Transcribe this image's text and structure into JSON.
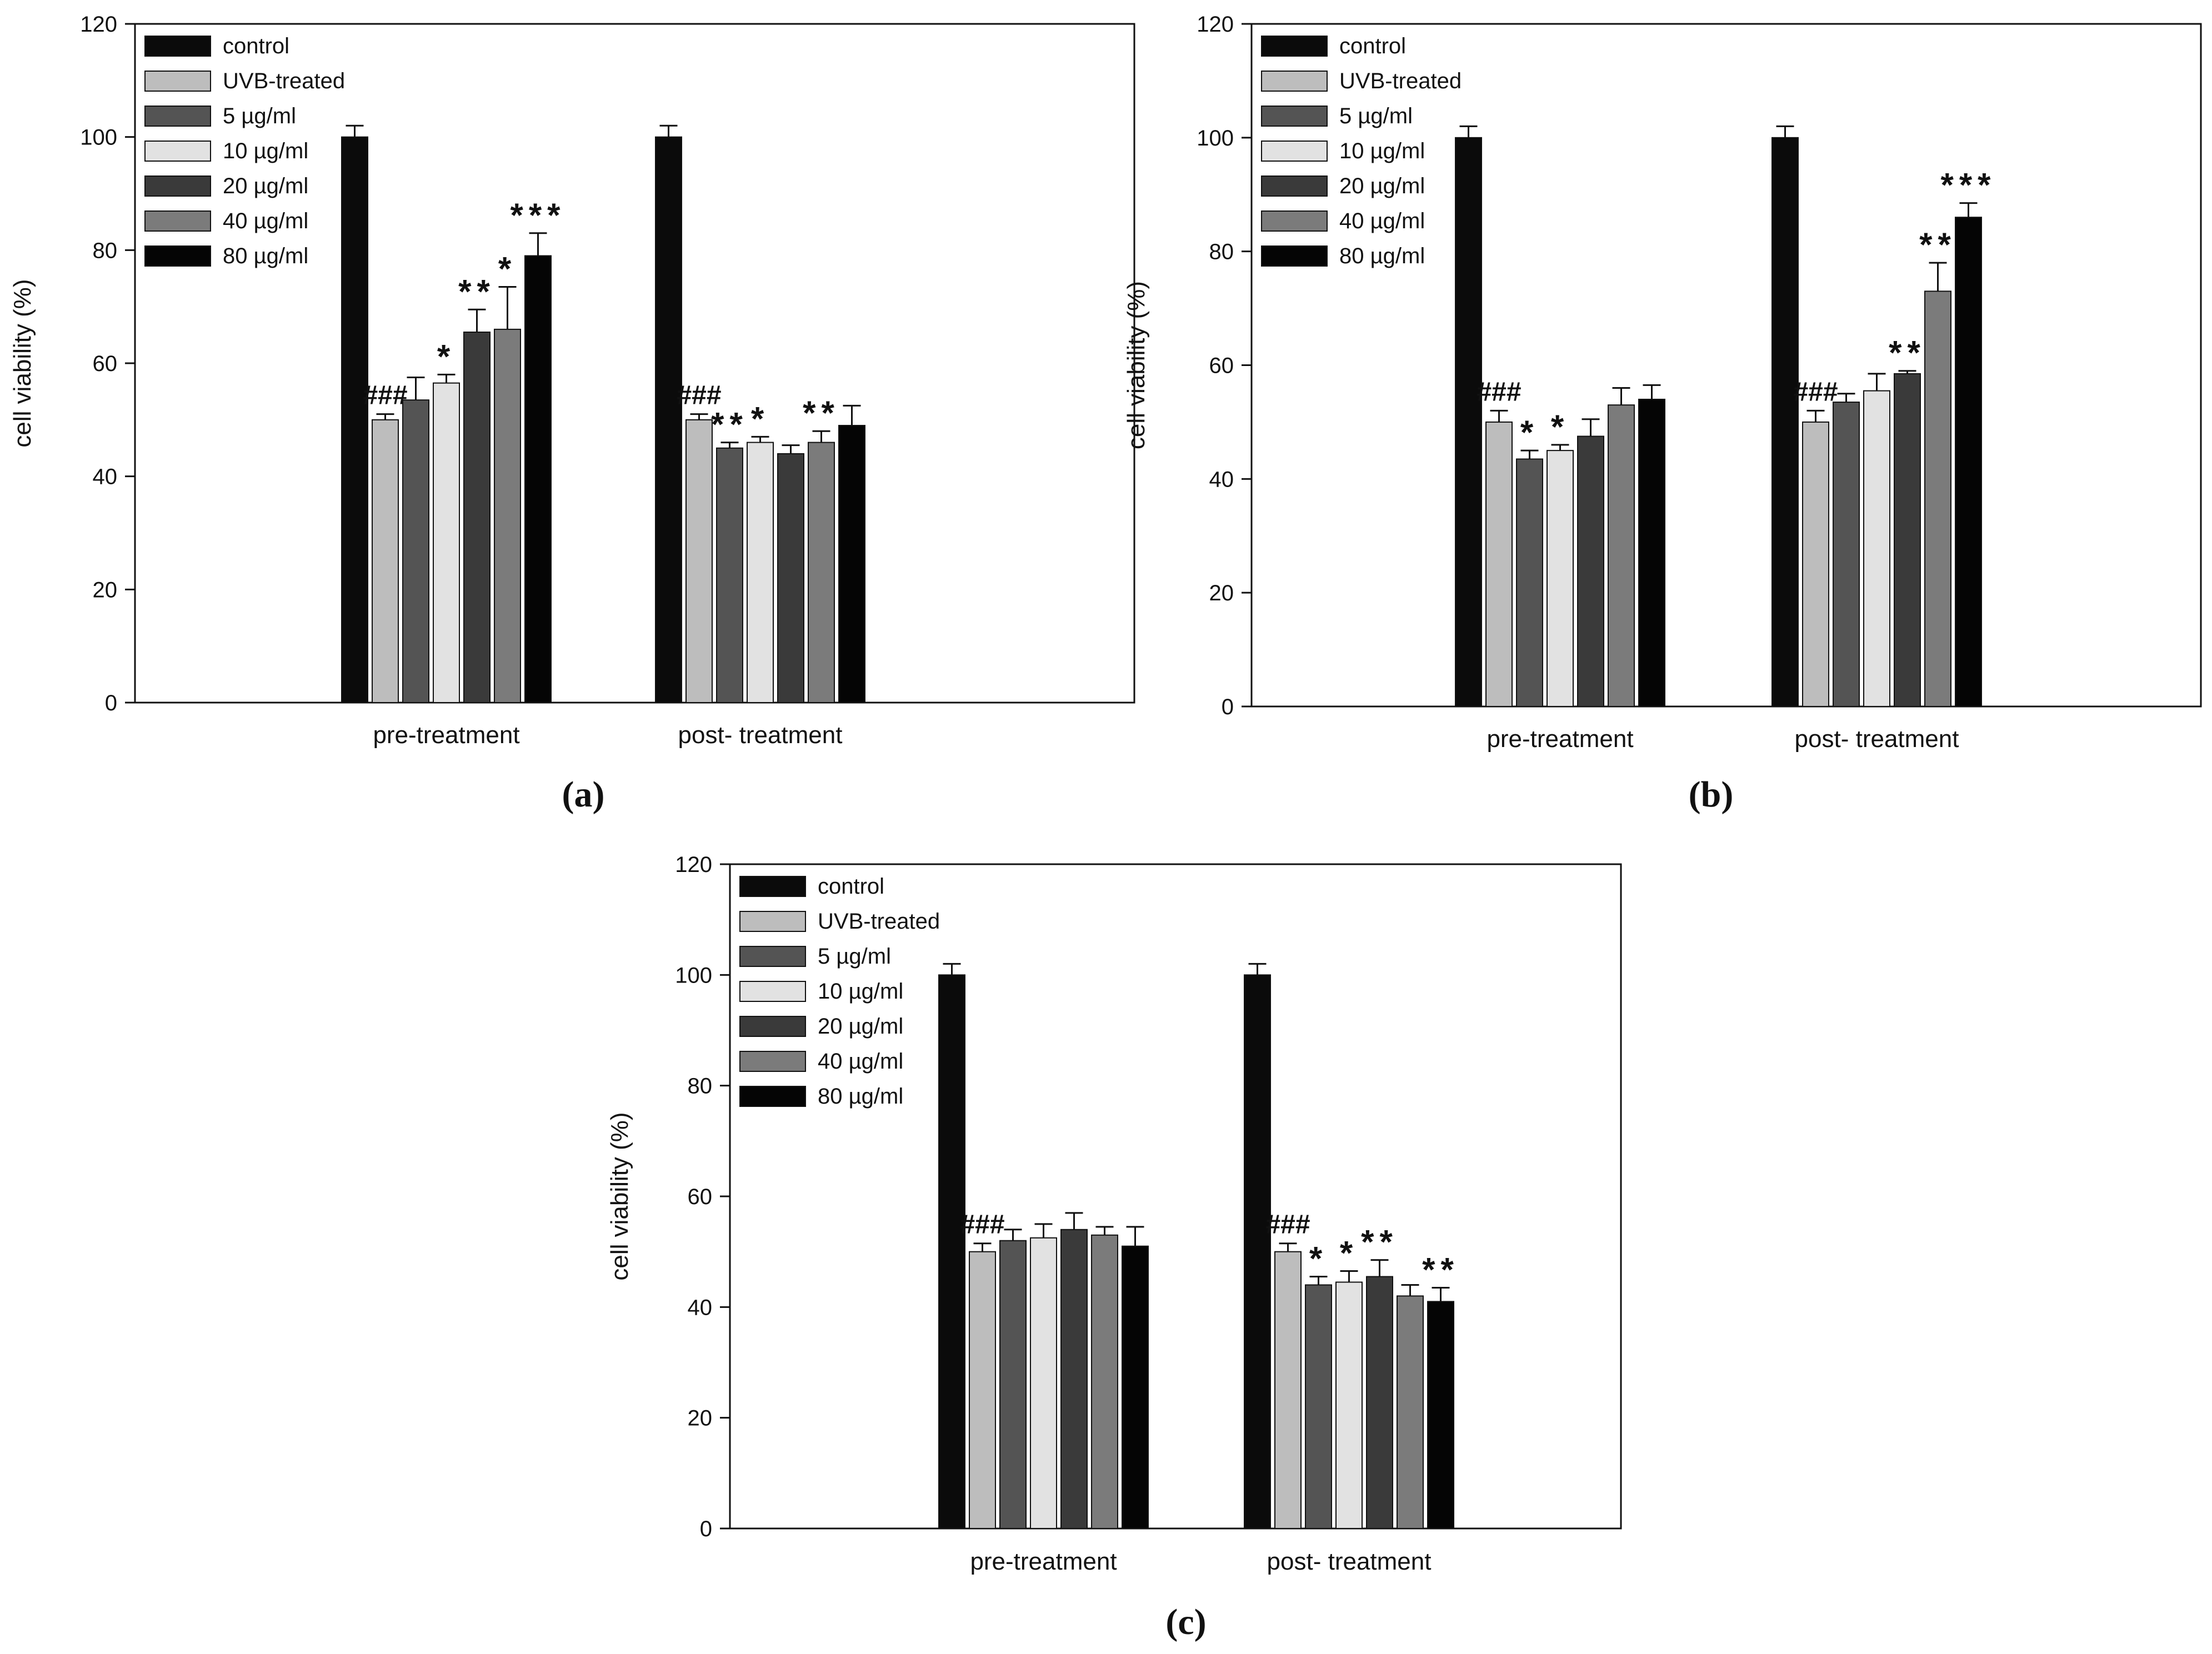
{
  "colors": {
    "control": "#0b0b0b",
    "UVB-treated": "#bdbdbd",
    "5": "#545454",
    "10": "#e2e2e2",
    "20": "#3a3a3a",
    "40": "#7b7b7b",
    "80": "#050505"
  },
  "legend": [
    "control",
    "UVB-treated",
    "5 µg/ml",
    "10 µg/ml",
    "20 µg/ml",
    "40 µg/ml",
    "80 µg/ml"
  ],
  "chart_data": [
    {
      "panel": "(a)",
      "type": "bar",
      "ylabel": "cell viability (%)",
      "ylim": [
        0,
        120
      ],
      "yticks": [
        "0",
        "20",
        "40",
        "60",
        "80",
        "100",
        "120"
      ],
      "categories": [
        "pre-treatment",
        "post- treatment"
      ],
      "series": [
        {
          "name": "control",
          "values": [
            100,
            100
          ],
          "errors": [
            2,
            2
          ],
          "marks": [
            "",
            ""
          ]
        },
        {
          "name": "UVB-treated",
          "values": [
            50,
            50
          ],
          "errors": [
            1,
            1
          ],
          "marks": [
            "###",
            "###"
          ]
        },
        {
          "name": "5 µg/ml",
          "values": [
            53.5,
            45
          ],
          "errors": [
            4,
            1
          ],
          "marks": [
            "",
            "**"
          ]
        },
        {
          "name": "10 µg/ml",
          "values": [
            56.5,
            46
          ],
          "errors": [
            1.5,
            1
          ],
          "marks": [
            "*",
            "*"
          ]
        },
        {
          "name": "20 µg/ml",
          "values": [
            65.5,
            44
          ],
          "errors": [
            4,
            1.5
          ],
          "marks": [
            "**",
            ""
          ]
        },
        {
          "name": "40 µg/ml",
          "values": [
            66,
            46
          ],
          "errors": [
            7.5,
            2
          ],
          "marks": [
            "*",
            "**"
          ]
        },
        {
          "name": "80 µg/ml",
          "values": [
            79,
            49
          ],
          "errors": [
            4,
            3.5
          ],
          "marks": [
            "***",
            ""
          ]
        }
      ]
    },
    {
      "panel": "(b)",
      "type": "bar",
      "ylabel": "cell viability (%)",
      "ylim": [
        0,
        120
      ],
      "yticks": [
        "0",
        "20",
        "40",
        "60",
        "80",
        "100",
        "120"
      ],
      "categories": [
        "pre-treatment",
        "post- treatment"
      ],
      "series": [
        {
          "name": "control",
          "values": [
            100,
            100
          ],
          "errors": [
            2,
            2
          ],
          "marks": [
            "",
            ""
          ]
        },
        {
          "name": "UVB-treated",
          "values": [
            50,
            50
          ],
          "errors": [
            2,
            2
          ],
          "marks": [
            "###",
            "###"
          ]
        },
        {
          "name": "5 µg/ml",
          "values": [
            43.5,
            53.5
          ],
          "errors": [
            1.5,
            1.5
          ],
          "marks": [
            "*",
            ""
          ]
        },
        {
          "name": "10 µg/ml",
          "values": [
            45,
            55.5
          ],
          "errors": [
            1,
            3
          ],
          "marks": [
            "*",
            ""
          ]
        },
        {
          "name": "20 µg/ml",
          "values": [
            47.5,
            58.5
          ],
          "errors": [
            3,
            0.5
          ],
          "marks": [
            "",
            "**"
          ]
        },
        {
          "name": "40 µg/ml",
          "values": [
            53,
            73
          ],
          "errors": [
            3,
            5
          ],
          "marks": [
            "",
            "**"
          ]
        },
        {
          "name": "80 µg/ml",
          "values": [
            54,
            86
          ],
          "errors": [
            2.5,
            2.5
          ],
          "marks": [
            "",
            "***"
          ]
        }
      ]
    },
    {
      "panel": "(c)",
      "type": "bar",
      "ylabel": "cell viability (%)",
      "ylim": [
        0,
        120
      ],
      "yticks": [
        "0",
        "20",
        "40",
        "60",
        "80",
        "100",
        "120"
      ],
      "categories": [
        "pre-treatment",
        "post- treatment"
      ],
      "series": [
        {
          "name": "control",
          "values": [
            100,
            100
          ],
          "errors": [
            2,
            2
          ],
          "marks": [
            "",
            ""
          ]
        },
        {
          "name": "UVB-treated",
          "values": [
            50,
            50
          ],
          "errors": [
            1.5,
            1.5
          ],
          "marks": [
            "###",
            "###"
          ]
        },
        {
          "name": "5 µg/ml",
          "values": [
            52,
            44
          ],
          "errors": [
            2,
            1.5
          ],
          "marks": [
            "",
            "*"
          ]
        },
        {
          "name": "10 µg/ml",
          "values": [
            52.5,
            44.5
          ],
          "errors": [
            2.5,
            2
          ],
          "marks": [
            "",
            "*"
          ]
        },
        {
          "name": "20 µg/ml",
          "values": [
            54,
            45.5
          ],
          "errors": [
            3,
            3
          ],
          "marks": [
            "",
            "**"
          ]
        },
        {
          "name": "40 µg/ml",
          "values": [
            53,
            42
          ],
          "errors": [
            1.5,
            2
          ],
          "marks": [
            "",
            ""
          ]
        },
        {
          "name": "80 µg/ml",
          "values": [
            51,
            41
          ],
          "errors": [
            3.5,
            2.5
          ],
          "marks": [
            "",
            "**"
          ]
        }
      ]
    }
  ]
}
